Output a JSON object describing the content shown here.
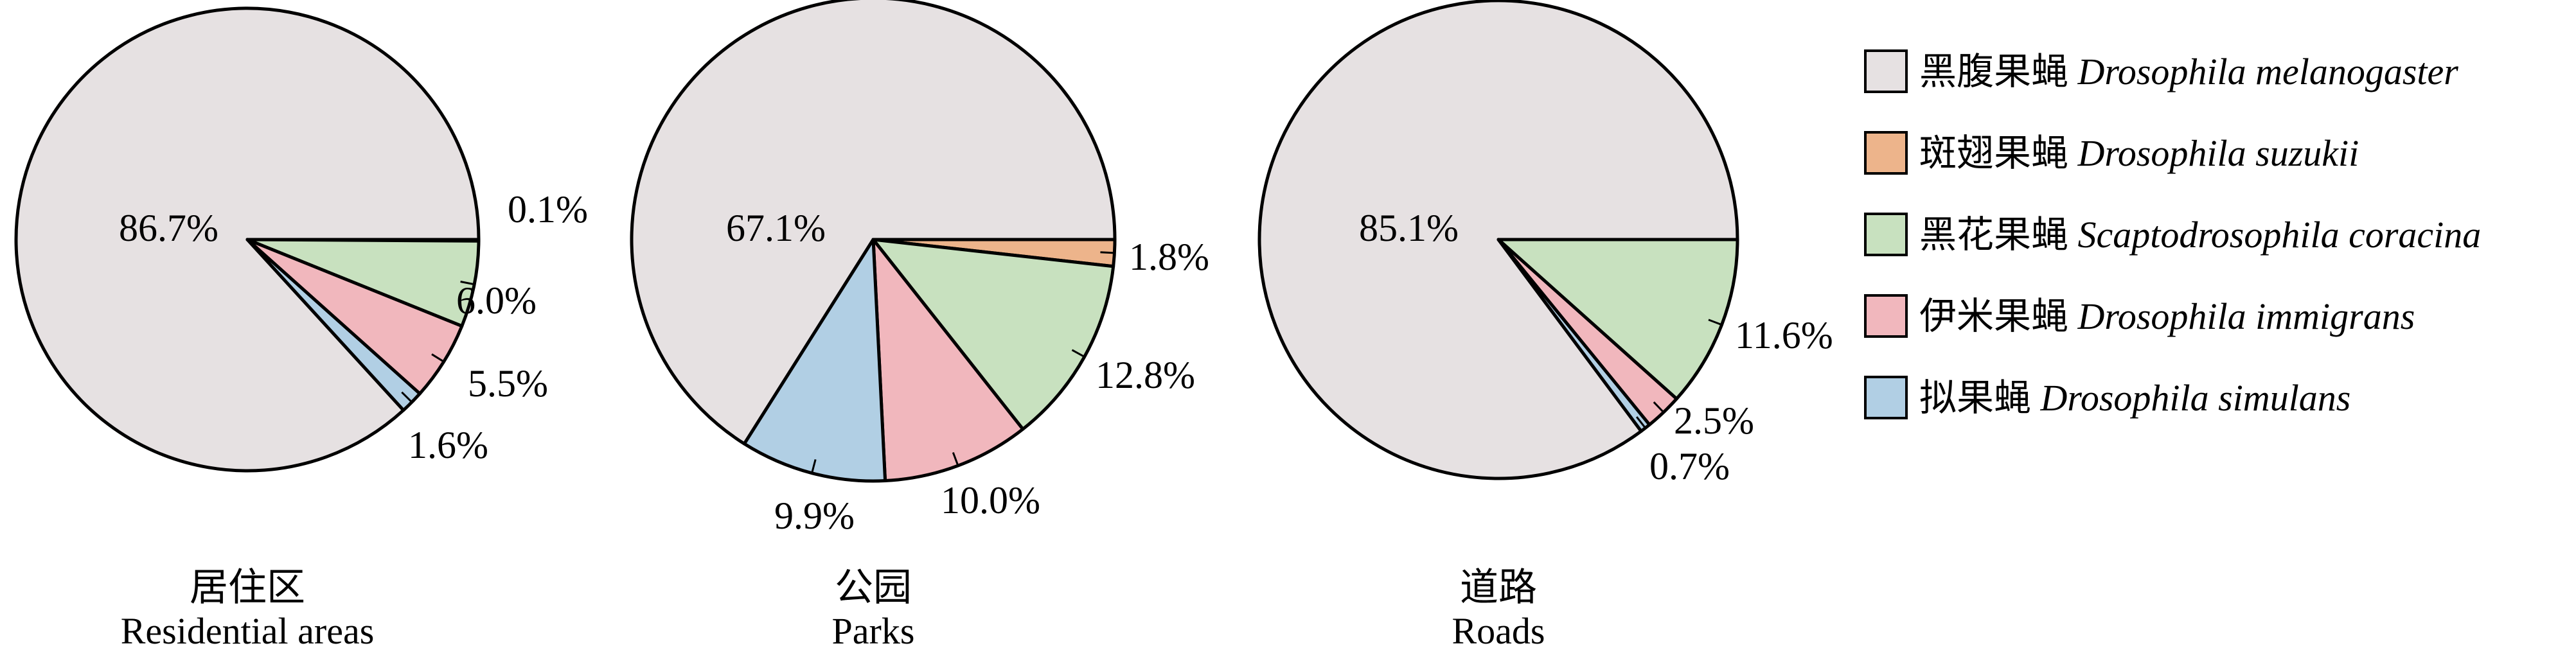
{
  "chart_data": {
    "type": "pie",
    "legend": {
      "placement": "right",
      "entries": [
        {
          "cn": "黑腹果蝇",
          "latin": "Drosophila melanogaster",
          "color": "#e6e1e2"
        },
        {
          "cn": "斑翅果蝇",
          "latin": "Drosophila suzukii",
          "color": "#edb48b"
        },
        {
          "cn": "黑花果蝇",
          "latin": "Scaptodrosophila coracina",
          "color": "#c8e1bf"
        },
        {
          "cn": "伊米果蝇",
          "latin": "Drosophila immigrans",
          "color": "#f1b7bd"
        },
        {
          "cn": "拟果蝇",
          "latin": "Drosophila simulans",
          "color": "#b1cfe4"
        }
      ]
    },
    "charts": [
      {
        "title_cn": "居住区",
        "title_en": "Residential areas",
        "slices": [
          {
            "species": "黑腹果蝇",
            "value": 86.7,
            "label": "86.7%"
          },
          {
            "species": "斑翅果蝇",
            "value": 0.1,
            "label": "0.1%"
          },
          {
            "species": "黑花果蝇",
            "value": 6.0,
            "label": "6.0%"
          },
          {
            "species": "伊米果蝇",
            "value": 5.5,
            "label": "5.5%"
          },
          {
            "species": "拟果蝇",
            "value": 1.6,
            "label": "1.6%"
          }
        ]
      },
      {
        "title_cn": "公园",
        "title_en": "Parks",
        "slices": [
          {
            "species": "黑腹果蝇",
            "value": 67.1,
            "label": "67.1%"
          },
          {
            "species": "斑翅果蝇",
            "value": 1.8,
            "label": "1.8%"
          },
          {
            "species": "黑花果蝇",
            "value": 12.8,
            "label": "12.8%"
          },
          {
            "species": "伊米果蝇",
            "value": 10.0,
            "label": "10.0%"
          },
          {
            "species": "拟果蝇",
            "value": 9.9,
            "label": "9.9%"
          }
        ]
      },
      {
        "title_cn": "道路",
        "title_en": "Roads",
        "slices": [
          {
            "species": "黑腹果蝇",
            "value": 85.1,
            "label": "85.1%"
          },
          {
            "species": "黑花果蝇",
            "value": 11.6,
            "label": "11.6%"
          },
          {
            "species": "伊米果蝇",
            "value": 2.5,
            "label": "2.5%"
          },
          {
            "species": "拟果蝇",
            "value": 0.7,
            "label": "0.7%"
          }
        ]
      }
    ]
  }
}
